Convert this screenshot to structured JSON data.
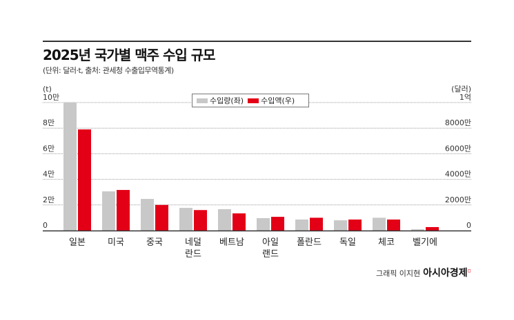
{
  "title": "2025년 국가별 맥주 수입 규모",
  "subtitle": "(단위: 달러·t, 출처: 관세청 수출입무역통계)",
  "credit": {
    "text": "그래픽 이지현",
    "brand": "아시아경제"
  },
  "chart_data": {
    "type": "bar",
    "title": "2025년 국가별 맥주 수입 규모",
    "categories": [
      [
        "일본"
      ],
      [
        "미국"
      ],
      [
        "중국"
      ],
      [
        "네덜",
        "란드"
      ],
      [
        "베트남"
      ],
      [
        "아일",
        "랜드"
      ],
      [
        "폴란드"
      ],
      [
        "독일"
      ],
      [
        "체코"
      ],
      [
        "벨기에"
      ]
    ],
    "series": [
      {
        "name": "수입량(좌)",
        "axis": "left",
        "unit": "t",
        "color": "#c8c8c8",
        "values": [
          100000,
          30600,
          24700,
          17700,
          16700,
          9700,
          8600,
          8000,
          10000,
          1000
        ]
      },
      {
        "name": "수입액(우)",
        "axis": "right",
        "unit": "달러",
        "color": "#e30016",
        "values": [
          79000000,
          31700000,
          20000000,
          16000000,
          13400000,
          10700000,
          10000000,
          8600000,
          8600000,
          2700000
        ]
      }
    ],
    "left_axis": {
      "label": "(t)",
      "ylim": [
        0,
        100000
      ],
      "ticks": [
        0,
        20000,
        40000,
        60000,
        80000,
        100000
      ],
      "tick_labels": [
        "0",
        "2만",
        "4만",
        "6만",
        "8만",
        "10만"
      ]
    },
    "right_axis": {
      "label": "(달러)",
      "ylim": [
        0,
        100000000
      ],
      "ticks": [
        0,
        20000000,
        40000000,
        60000000,
        80000000,
        100000000
      ],
      "tick_labels": [
        "0",
        "2000만",
        "4000만",
        "6000만",
        "8000만",
        "1억"
      ]
    },
    "grid": true,
    "legend": "top-center"
  }
}
